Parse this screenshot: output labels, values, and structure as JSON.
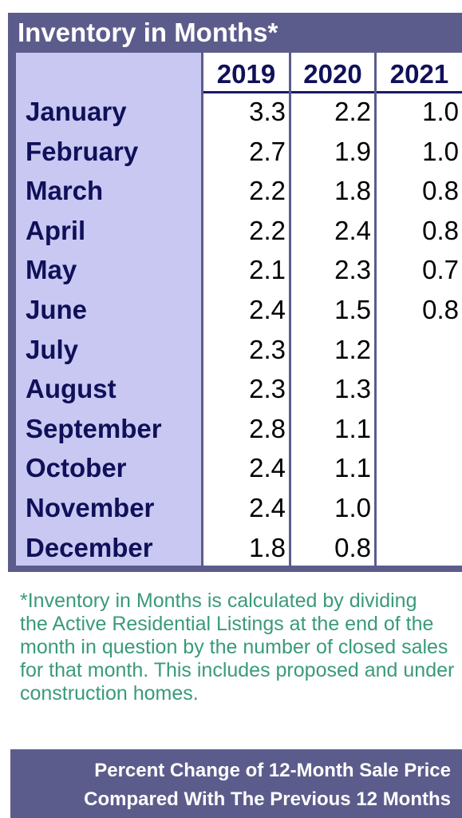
{
  "title": "Inventory in Months*",
  "years": [
    "2019",
    "2020",
    "2021"
  ],
  "rows": [
    {
      "month": "January",
      "v2019": "3.3",
      "v2020": "2.2",
      "v2021": "1.0"
    },
    {
      "month": "February",
      "v2019": "2.7",
      "v2020": "1.9",
      "v2021": "1.0"
    },
    {
      "month": "March",
      "v2019": "2.2",
      "v2020": "1.8",
      "v2021": "0.8"
    },
    {
      "month": "April",
      "v2019": "2.2",
      "v2020": "2.4",
      "v2021": "0.8"
    },
    {
      "month": "May",
      "v2019": "2.1",
      "v2020": "2.3",
      "v2021": "0.7"
    },
    {
      "month": "June",
      "v2019": "2.4",
      "v2020": "1.5",
      "v2021": "0.8"
    },
    {
      "month": "July",
      "v2019": "2.3",
      "v2020": "1.2",
      "v2021": ""
    },
    {
      "month": "August",
      "v2019": "2.3",
      "v2020": "1.3",
      "v2021": ""
    },
    {
      "month": "September",
      "v2019": "2.8",
      "v2020": "1.1",
      "v2021": ""
    },
    {
      "month": "October",
      "v2019": "2.4",
      "v2020": "1.1",
      "v2021": ""
    },
    {
      "month": "November",
      "v2019": "2.4",
      "v2020": "1.0",
      "v2021": ""
    },
    {
      "month": "December",
      "v2019": "1.8",
      "v2020": "0.8",
      "v2021": ""
    }
  ],
  "footnote": [
    "*Inventory in Months is calculated by dividing",
    "the Active Residential Listings at the end of the",
    "month in question by the number of closed sales",
    "for that month. This includes proposed and under",
    "construction homes."
  ],
  "next_section": {
    "line1": "Percent Change of 12-Month Sale Price",
    "line2": "Compared With The Previous 12 Months"
  },
  "colors": {
    "panel": "#5c5c8c",
    "month_column": "#c8c8f2",
    "heading_text": "#10105a",
    "footnote_text": "#3a9a7a"
  }
}
